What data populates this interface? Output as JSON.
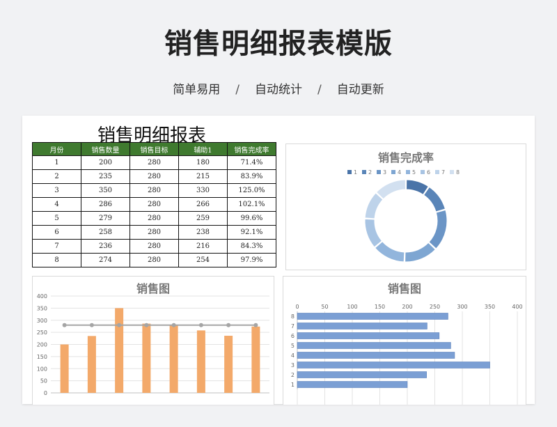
{
  "page": {
    "title": "销售明细报表模版",
    "subtitle": {
      "items": [
        "简单易用",
        "自动统计",
        "自动更新"
      ],
      "separator": "/"
    }
  },
  "sheet": {
    "title": "销售明细报表"
  },
  "table": {
    "headers": [
      "月份",
      "销售数量",
      "销售目标",
      "辅助1",
      "销售完成率"
    ],
    "rows": [
      [
        "1",
        "200",
        "280",
        "180",
        "71.4%"
      ],
      [
        "2",
        "235",
        "280",
        "215",
        "83.9%"
      ],
      [
        "3",
        "350",
        "280",
        "330",
        "125.0%"
      ],
      [
        "4",
        "286",
        "280",
        "266",
        "102.1%"
      ],
      [
        "5",
        "279",
        "280",
        "259",
        "99.6%"
      ],
      [
        "6",
        "258",
        "280",
        "238",
        "92.1%"
      ],
      [
        "7",
        "236",
        "280",
        "216",
        "84.3%"
      ],
      [
        "8",
        "274",
        "280",
        "254",
        "97.9%"
      ]
    ]
  },
  "chart_data": [
    {
      "type": "pie",
      "variant": "doughnut",
      "title": "销售完成率",
      "legend": "top",
      "categories": [
        "1",
        "2",
        "3",
        "4",
        "5",
        "6",
        "7",
        "8"
      ],
      "values": [
        71.4,
        83.9,
        125.0,
        102.1,
        99.6,
        92.1,
        84.3,
        97.9
      ],
      "colors": [
        "#4a74a8",
        "#5a85b8",
        "#6b95c6",
        "#7ea6d2",
        "#92b5dc",
        "#a8c4e3",
        "#bed3ea",
        "#d2e0f0"
      ]
    },
    {
      "type": "bar",
      "title": "销售图",
      "categories": [
        "1",
        "2",
        "3",
        "4",
        "5",
        "6",
        "7",
        "8"
      ],
      "series": [
        {
          "values": [
            200,
            235,
            350,
            286,
            279,
            258,
            236,
            274
          ],
          "color": "#f3a96a"
        }
      ],
      "line": {
        "values": [
          280,
          280,
          280,
          280,
          280,
          280,
          280,
          280
        ],
        "color": "#a5a5a5"
      },
      "ylim": [
        0,
        400
      ],
      "yticks": [
        0,
        50,
        100,
        150,
        200,
        250,
        300,
        350,
        400
      ],
      "grid": true
    },
    {
      "type": "bar",
      "orientation": "horizontal",
      "title": "销售图",
      "categories": [
        "1",
        "2",
        "3",
        "4",
        "5",
        "6",
        "7",
        "8"
      ],
      "series": [
        {
          "values": [
            200,
            235,
            350,
            286,
            279,
            258,
            236,
            274
          ],
          "color": "#7b9fd4"
        }
      ],
      "xlim": [
        0,
        400
      ],
      "xticks": [
        0,
        50,
        100,
        150,
        200,
        250,
        300,
        350,
        400
      ],
      "grid": true
    }
  ]
}
